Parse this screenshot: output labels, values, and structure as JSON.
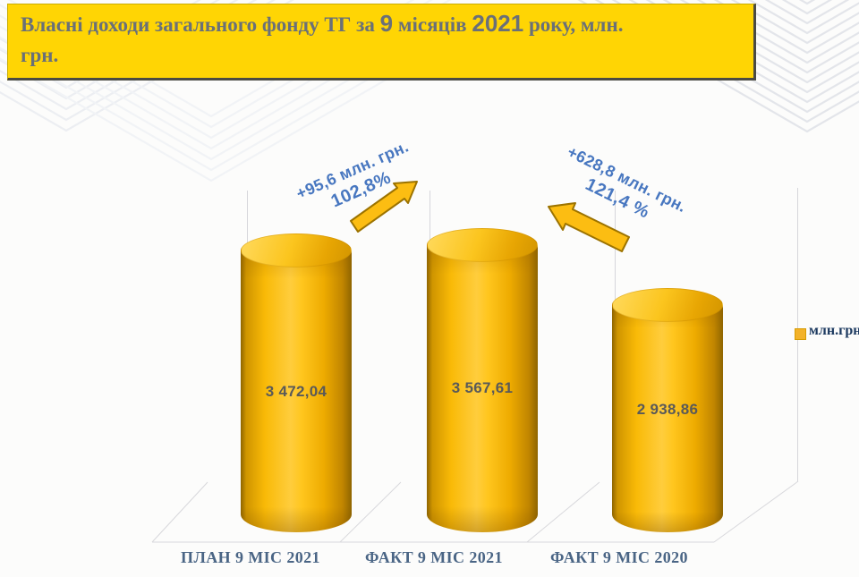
{
  "title": {
    "seg1": "Власні доходи загального фонду ТГ за ",
    "seg2": "9",
    "seg3": " місяців ",
    "seg4": "2021",
    "seg5": " року,  млн.",
    "line2": "грн."
  },
  "chart_data": {
    "type": "bar",
    "style": "3d-cylinder",
    "title": "Власні доходи загального фонду ТГ за 9 місяців 2021 року, млн. грн.",
    "categories": [
      "ПЛАН 9 МІС 2021",
      "ФАКТ 9 МІС 2021",
      "ФАКТ 9 МІС 2020"
    ],
    "values": [
      3472.04,
      3567.61,
      2938.86
    ],
    "value_labels": [
      "3 472,04",
      "3 567,61",
      "2 938,86"
    ],
    "ylim": [
      0,
      3700
    ],
    "grid": false,
    "legend_position": "right",
    "legend_label": "млн.грн",
    "bar_color": "#FFC000",
    "annotation_color": "#4877C0",
    "annotations": [
      {
        "line1": "+95,6 млн. грн.",
        "line2": "102,8%"
      },
      {
        "line1": "+628,8 млн. грн.",
        "line2": "121,4 %"
      }
    ]
  }
}
